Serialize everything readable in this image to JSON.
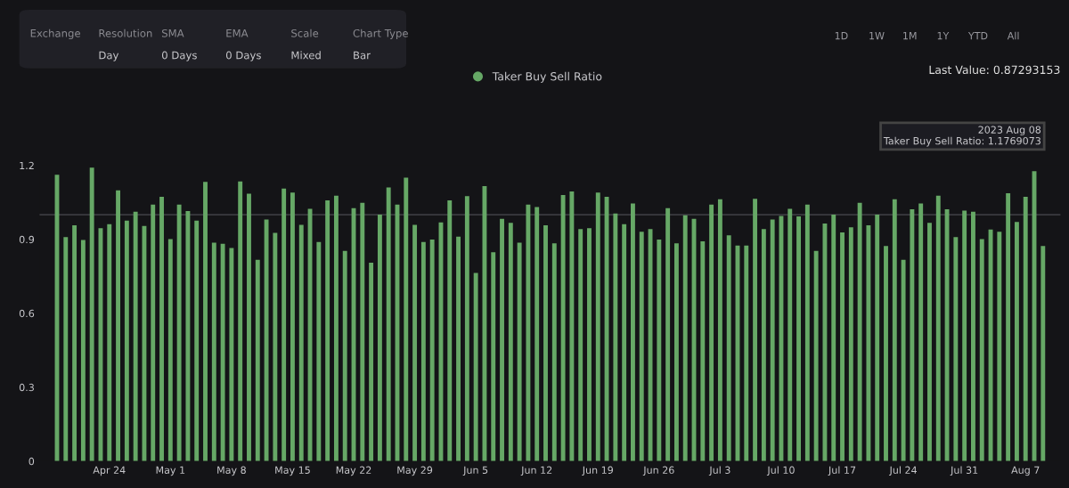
{
  "chart_data": {
    "type": "bar",
    "legend": "top",
    "x": [
      "2023-04-18",
      "2023-04-19",
      "2023-04-20",
      "2023-04-21",
      "2023-04-22",
      "2023-04-23",
      "2023-04-24",
      "2023-04-25",
      "2023-04-26",
      "2023-04-27",
      "2023-04-28",
      "2023-04-29",
      "2023-04-30",
      "2023-05-01",
      "2023-05-02",
      "2023-05-03",
      "2023-05-04",
      "2023-05-05",
      "2023-05-06",
      "2023-05-07",
      "2023-05-08",
      "2023-05-09",
      "2023-05-10",
      "2023-05-11",
      "2023-05-12",
      "2023-05-13",
      "2023-05-14",
      "2023-05-15",
      "2023-05-16",
      "2023-05-17",
      "2023-05-18",
      "2023-05-19",
      "2023-05-20",
      "2023-05-21",
      "2023-05-22",
      "2023-05-23",
      "2023-05-24",
      "2023-05-25",
      "2023-05-26",
      "2023-05-27",
      "2023-05-28",
      "2023-05-29",
      "2023-05-30",
      "2023-05-31",
      "2023-06-01",
      "2023-06-02",
      "2023-06-03",
      "2023-06-04",
      "2023-06-05",
      "2023-06-06",
      "2023-06-07",
      "2023-06-08",
      "2023-06-09",
      "2023-06-10",
      "2023-06-11",
      "2023-06-12",
      "2023-06-13",
      "2023-06-14",
      "2023-06-15",
      "2023-06-16",
      "2023-06-17",
      "2023-06-18",
      "2023-06-19",
      "2023-06-20",
      "2023-06-21",
      "2023-06-22",
      "2023-06-23",
      "2023-06-24",
      "2023-06-25",
      "2023-06-26",
      "2023-06-27",
      "2023-06-28",
      "2023-06-29",
      "2023-06-30",
      "2023-07-01",
      "2023-07-02",
      "2023-07-03",
      "2023-07-04",
      "2023-07-05",
      "2023-07-06",
      "2023-07-07",
      "2023-07-08",
      "2023-07-09",
      "2023-07-10",
      "2023-07-11",
      "2023-07-12",
      "2023-07-13",
      "2023-07-14",
      "2023-07-15",
      "2023-07-16",
      "2023-07-17",
      "2023-07-18",
      "2023-07-19",
      "2023-07-20",
      "2023-07-21",
      "2023-07-22",
      "2023-07-23",
      "2023-07-24",
      "2023-07-25",
      "2023-07-26",
      "2023-07-27",
      "2023-07-28",
      "2023-07-29",
      "2023-07-30",
      "2023-07-31",
      "2023-08-01",
      "2023-08-02",
      "2023-08-03",
      "2023-08-04",
      "2023-08-05",
      "2023-08-06",
      "2023-08-07",
      "2023-08-08",
      "2023-08-09"
    ],
    "series": [
      {
        "name": "Taker Buy Sell Ratio",
        "color": "#66a866",
        "values": [
          1.162,
          0.909,
          0.957,
          0.897,
          1.191,
          0.945,
          0.962,
          1.099,
          0.976,
          1.012,
          0.954,
          1.041,
          1.073,
          0.901,
          1.041,
          1.015,
          0.976,
          1.133,
          0.887,
          0.882,
          0.865,
          1.135,
          1.085,
          0.817,
          0.981,
          0.926,
          1.106,
          1.09,
          0.959,
          1.024,
          0.889,
          1.058,
          1.077,
          0.853,
          1.027,
          1.048,
          0.805,
          1.0,
          1.111,
          1.041,
          1.15,
          0.959,
          0.889,
          0.899,
          0.969,
          1.058,
          0.911,
          1.075,
          0.764,
          1.116,
          0.848,
          0.983,
          0.967,
          0.887,
          1.041,
          1.031,
          0.957,
          0.884,
          1.08,
          1.094,
          0.942,
          0.945,
          1.09,
          1.073,
          1.005,
          0.962,
          1.046,
          0.931,
          0.942,
          0.899,
          1.027,
          0.884,
          0.998,
          0.983,
          0.892,
          1.041,
          1.063,
          0.916,
          0.875,
          0.875,
          1.065,
          0.942,
          0.981,
          0.995,
          1.024,
          0.993,
          1.041,
          0.853,
          0.964,
          1.0,
          0.928,
          0.949,
          1.048,
          0.957,
          1.0,
          0.873,
          1.063,
          0.817,
          1.022,
          1.046,
          0.967,
          1.077,
          1.022,
          0.909,
          1.017,
          1.012,
          0.901,
          0.94,
          0.931,
          1.087,
          0.971,
          1.073,
          1.1769073,
          0.87293153
        ]
      }
    ],
    "xlim": [
      "2023-04-16",
      "2023-08-11"
    ],
    "xticks": [
      {
        "value": "2023-04-24",
        "label": "Apr 24"
      },
      {
        "value": "2023-05-01",
        "label": "May 1"
      },
      {
        "value": "2023-05-08",
        "label": "May 8"
      },
      {
        "value": "2023-05-15",
        "label": "May 15"
      },
      {
        "value": "2023-05-22",
        "label": "May 22"
      },
      {
        "value": "2023-05-29",
        "label": "May 29"
      },
      {
        "value": "2023-06-05",
        "label": "Jun 5"
      },
      {
        "value": "2023-06-12",
        "label": "Jun 12"
      },
      {
        "value": "2023-06-19",
        "label": "Jun 19"
      },
      {
        "value": "2023-06-26",
        "label": "Jun 26"
      },
      {
        "value": "2023-07-03",
        "label": "Jul 3"
      },
      {
        "value": "2023-07-10",
        "label": "Jul 10"
      },
      {
        "value": "2023-07-17",
        "label": "Jul 17"
      },
      {
        "value": "2023-07-24",
        "label": "Jul 24"
      },
      {
        "value": "2023-07-31",
        "label": "Jul 31"
      },
      {
        "value": "2023-08-07",
        "label": "Aug 7"
      }
    ],
    "ylim": [
      0,
      1.2
    ],
    "yticks": [
      0,
      0.3,
      0.6,
      0.9,
      1.2
    ],
    "ref_lines": [
      {
        "axis": "y",
        "value": 1,
        "color": "#3a3a40"
      }
    ],
    "annotations": [
      "Exchange",
      "Resolution",
      "Day",
      "SMA",
      "0 Days",
      "EMA",
      "0 Days",
      "Scale",
      "Mixed",
      "Chart Type",
      "Bar",
      "1D",
      "1W",
      "1M",
      "1Y",
      "YTD",
      "All",
      "Last Value: 0.87293153",
      {
        "text": "2023 Aug 08\nTaker Buy Sell Ratio: 1.1769073",
        "x": "2023-08-08",
        "y": 1.1769073
      }
    ]
  }
}
